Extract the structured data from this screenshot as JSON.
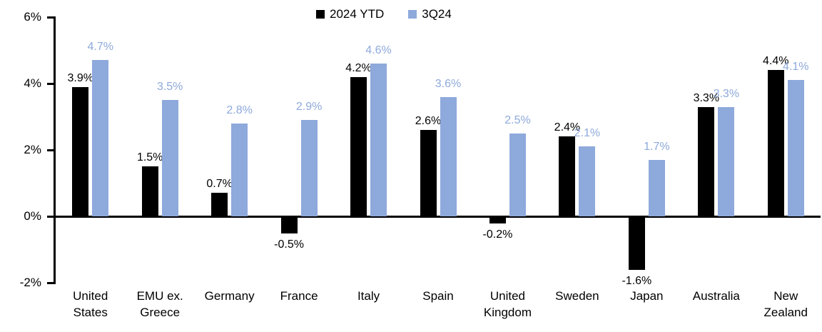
{
  "chart_data": {
    "type": "bar",
    "title": "",
    "categories": [
      "United States",
      "EMU ex. Greece",
      "Germany",
      "France",
      "Italy",
      "Spain",
      "United Kingdom",
      "Sweden",
      "Japan",
      "Australia",
      "New Zealand"
    ],
    "category_lines": [
      [
        "United",
        "States"
      ],
      [
        "EMU ex.",
        "Greece"
      ],
      [
        "Germany"
      ],
      [
        "France"
      ],
      [
        "Italy"
      ],
      [
        "Spain"
      ],
      [
        "United",
        "Kingdom"
      ],
      [
        "Sweden"
      ],
      [
        "Japan"
      ],
      [
        "Australia"
      ],
      [
        "New",
        "Zealand"
      ]
    ],
    "series": [
      {
        "name": "2024 YTD",
        "color": "#000000",
        "values": [
          3.9,
          1.5,
          0.7,
          -0.5,
          4.2,
          2.6,
          -0.2,
          2.4,
          -1.6,
          3.3,
          4.4
        ],
        "labels": [
          "3.9%",
          "1.5%",
          "0.7%",
          "-0.5%",
          "4.2%",
          "2.6%",
          "-0.2%",
          "2.4%",
          "-1.6%",
          "3.3%",
          "4.4%"
        ]
      },
      {
        "name": "3Q24",
        "color": "#8EA9DB",
        "values": [
          4.7,
          3.5,
          2.8,
          2.9,
          4.6,
          3.6,
          2.5,
          2.1,
          1.7,
          3.3,
          4.1
        ],
        "labels": [
          "4.7%",
          "3.5%",
          "2.8%",
          "2.9%",
          "4.6%",
          "3.6%",
          "2.5%",
          "2.1%",
          "1.7%",
          "3.3%",
          "4.1%"
        ]
      }
    ],
    "y_axis": {
      "ticks": [
        "6%",
        "4%",
        "2%",
        "0%",
        "-2%"
      ],
      "tick_values": [
        6,
        4,
        2,
        0,
        -2
      ],
      "min": -2,
      "max": 6
    },
    "legend": {
      "position": "top",
      "entries": [
        "2024 YTD",
        "3Q24"
      ]
    },
    "grid": "off"
  }
}
